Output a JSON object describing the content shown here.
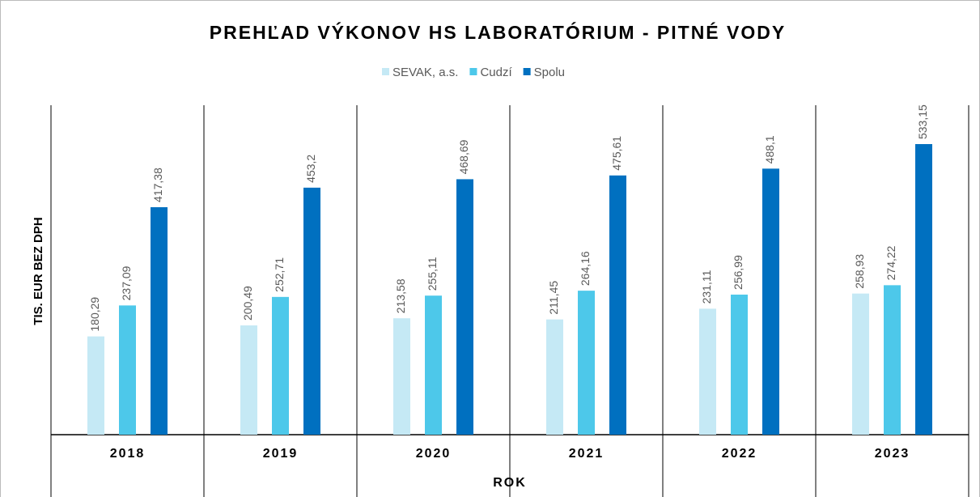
{
  "chart_data": {
    "type": "bar",
    "title": "PREHĽAD VÝKONOV HS LABORATÓRIUM - PITNÉ VODY",
    "y_label": "TIS. EUR BEZ DPH",
    "x_label": "ROK",
    "categories": [
      "2018",
      "2019",
      "2020",
      "2021",
      "2022",
      "2023"
    ],
    "series": [
      {
        "name": "SEVAK, a.s.",
        "color": "#c5e9f5",
        "values": [
          180.29,
          200.49,
          213.58,
          211.45,
          231.11,
          258.93
        ],
        "value_labels": [
          "180,29",
          "200,49",
          "213,58",
          "211,45",
          "231,11",
          "258,93"
        ]
      },
      {
        "name": "Cudzí",
        "color": "#4dc8ea",
        "values": [
          237.09,
          252.71,
          255.11,
          264.16,
          256.99,
          274.22
        ],
        "value_labels": [
          "237,09",
          "252,71",
          "255,11",
          "264,16",
          "256,99",
          "274,22"
        ]
      },
      {
        "name": "Spolu",
        "color": "#0070c0",
        "values": [
          417.38,
          453.2,
          468.69,
          475.61,
          488.1,
          533.15
        ],
        "value_labels": [
          "417,38",
          "453,2",
          "468,69",
          "475,61",
          "488,1",
          "533,15"
        ]
      }
    ],
    "ylim": [
      0,
      600
    ],
    "legend": "top"
  }
}
